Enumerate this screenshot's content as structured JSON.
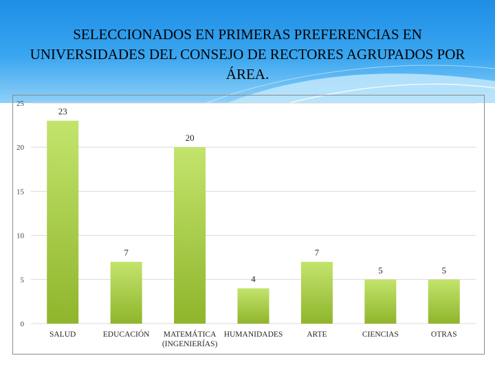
{
  "slide": {
    "title": "SELECCIONADOS EN PRIMERAS PREFERENCIAS EN UNIVERSIDADES DEL CONSEJO DE RECTORES AGRUPADOS POR ÁREA."
  },
  "colors": {
    "bar_top": "#c3e46c",
    "bar_bottom": "#8fb52c",
    "grid": "#d9d9d9",
    "header_top": "#1e8ee6",
    "header_bottom": "#8fd0f8"
  },
  "chart_data": {
    "type": "bar",
    "categories": [
      "SALUD",
      "EDUCACIÓN",
      "MATEMÁTICA (INGENIERÍAS)",
      "HUMANIDADES",
      "ARTE",
      "CIENCIAS",
      "OTRAS"
    ],
    "category_lines": [
      [
        "SALUD"
      ],
      [
        "EDUCACIÓN"
      ],
      [
        "MATEMÁTICA",
        "(INGENIERÍAS)"
      ],
      [
        "HUMANIDADES"
      ],
      [
        "ARTE"
      ],
      [
        "CIENCIAS"
      ],
      [
        "OTRAS"
      ]
    ],
    "values": [
      23,
      7,
      20,
      4,
      7,
      5,
      5
    ],
    "data_labels": [
      "23",
      "7",
      "20",
      "4",
      "7",
      "5",
      "5"
    ],
    "yticks": [
      0,
      5,
      10,
      15,
      20,
      25
    ],
    "ytick_labels": [
      "0",
      "5",
      "10",
      "15",
      "20",
      "25"
    ],
    "ylim": [
      0,
      25
    ],
    "grid": true,
    "legend": "none"
  }
}
